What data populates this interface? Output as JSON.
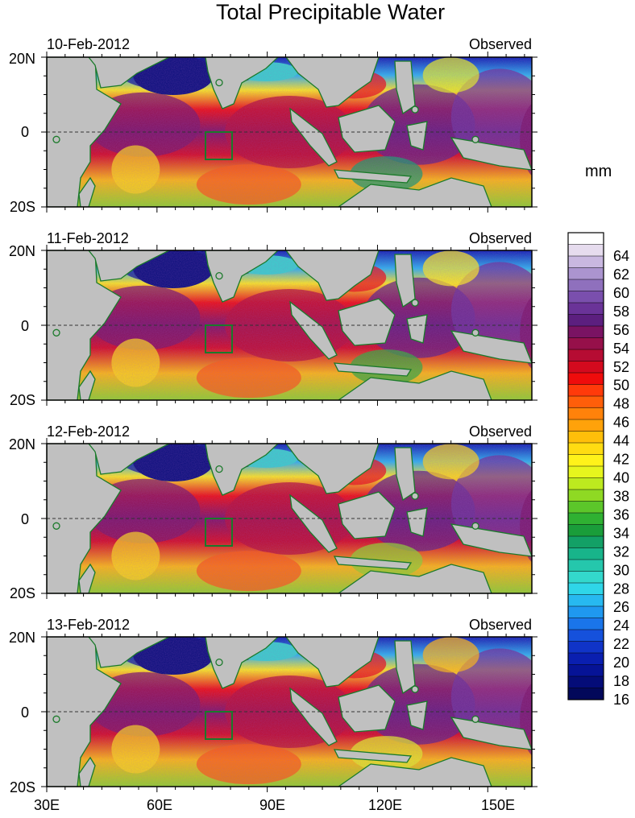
{
  "title": "Total Precipitable Water",
  "units": "mm",
  "panels": [
    {
      "date": "10-Feb-2012",
      "label": "Observed"
    },
    {
      "date": "11-Feb-2012",
      "label": "Observed"
    },
    {
      "date": "12-Feb-2012",
      "label": "Observed"
    },
    {
      "date": "13-Feb-2012",
      "label": "Observed"
    }
  ],
  "lat_ticks": [
    "20N",
    "0",
    "20S"
  ],
  "lon_ticks": [
    "30E",
    "60E",
    "90E",
    "120E",
    "150E"
  ],
  "colorbar": {
    "labels": [
      "64",
      "62",
      "60",
      "58",
      "56",
      "54",
      "52",
      "50",
      "48",
      "46",
      "44",
      "42",
      "40",
      "38",
      "36",
      "34",
      "32",
      "30",
      "28",
      "26",
      "24",
      "22",
      "20",
      "18",
      "16"
    ],
    "colors": [
      "#ffffff",
      "#e6dcee",
      "#c9b8e0",
      "#ab94cf",
      "#8f70bd",
      "#7a4fad",
      "#6a3398",
      "#5c1f7f",
      "#7a1363",
      "#96104a",
      "#b60c33",
      "#d40a1e",
      "#ef0c0c",
      "#ff3a0a",
      "#ff5e0a",
      "#ff820a",
      "#ffa20a",
      "#ffbf0a",
      "#ffdc12",
      "#fff21a",
      "#e6f51d",
      "#bdea1f",
      "#8fd923",
      "#5cc62a",
      "#2fb132",
      "#1a9d3a",
      "#13a066",
      "#18b48a",
      "#25c7ac",
      "#33d8cc",
      "#2fd6e8",
      "#27b9f0",
      "#1f98f0",
      "#1a75ea",
      "#1551dc",
      "#1034c8",
      "#0a1fb0",
      "#061396",
      "#040c78",
      "#02085a"
    ]
  }
}
